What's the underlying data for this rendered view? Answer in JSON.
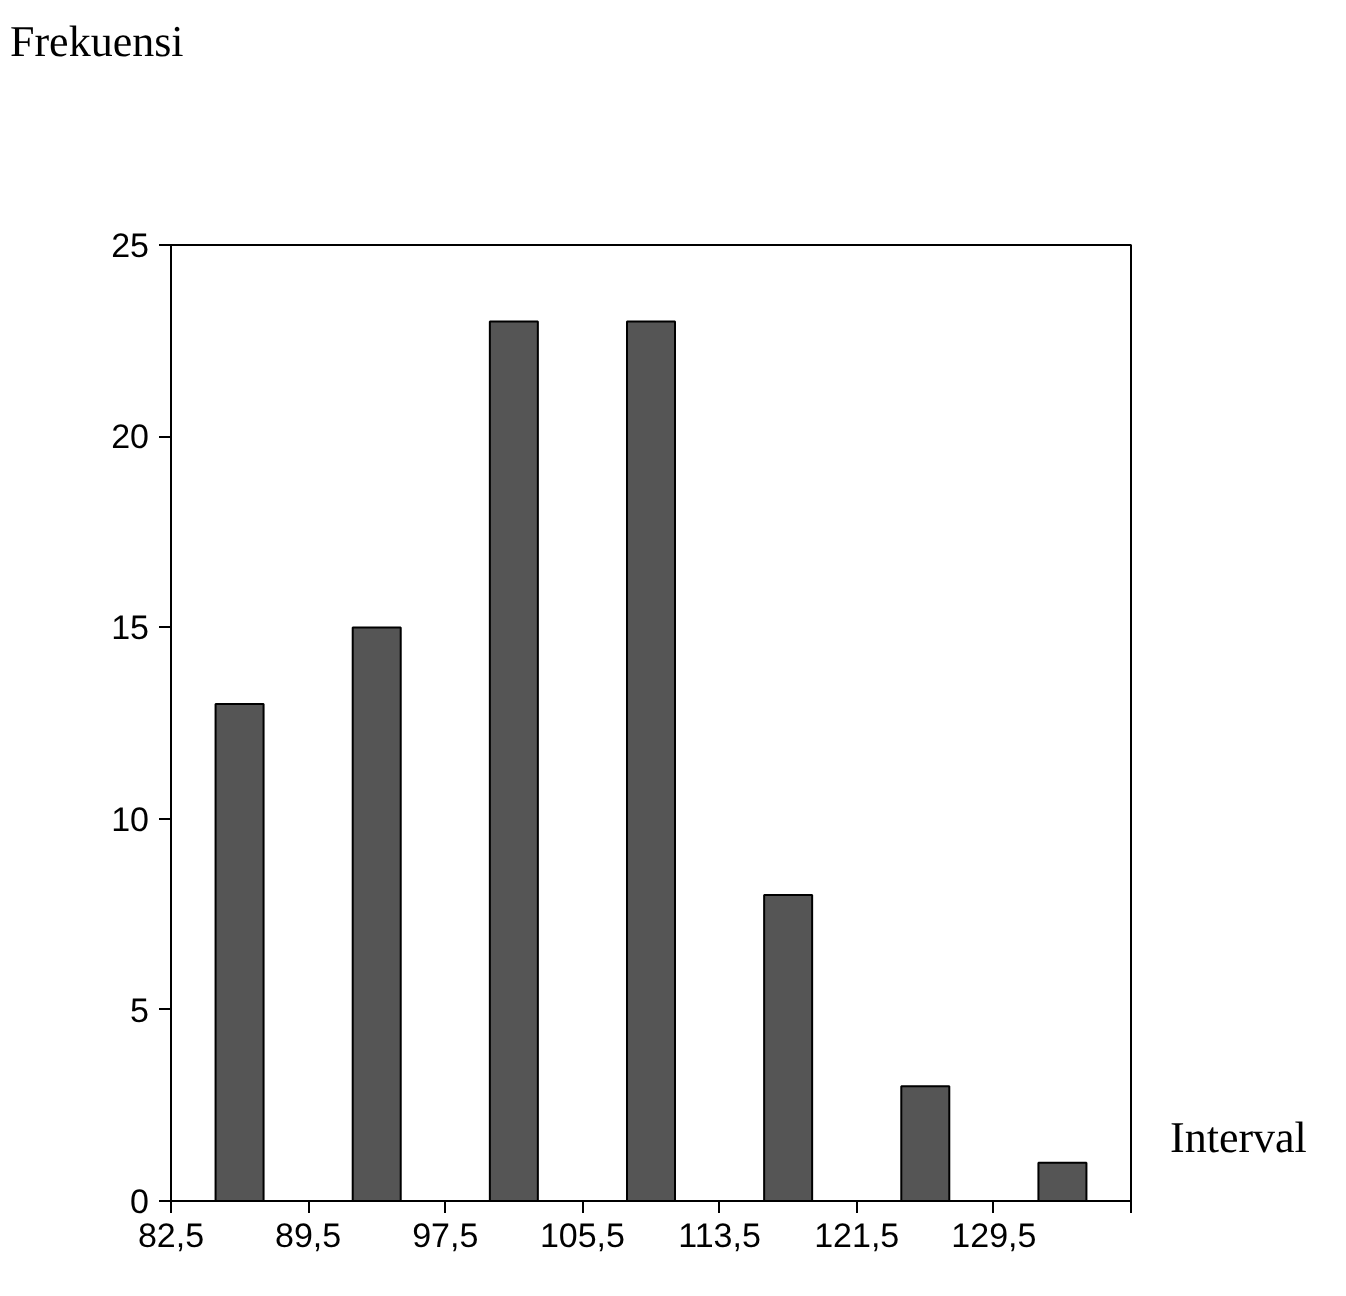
{
  "chart_data": {
    "type": "bar",
    "xlabel": "Interval",
    "ylabel": "Frekuensi",
    "categories": [
      "82,5",
      "89,5",
      "97,5",
      "105,5",
      "113,5",
      "121,5",
      "129,5"
    ],
    "values": [
      13,
      15,
      23,
      23,
      8,
      3,
      1
    ],
    "color": "#555555",
    "ylim": [
      0,
      25
    ],
    "yticks": [
      0,
      5,
      10,
      15,
      20,
      25
    ],
    "grid": false
  }
}
